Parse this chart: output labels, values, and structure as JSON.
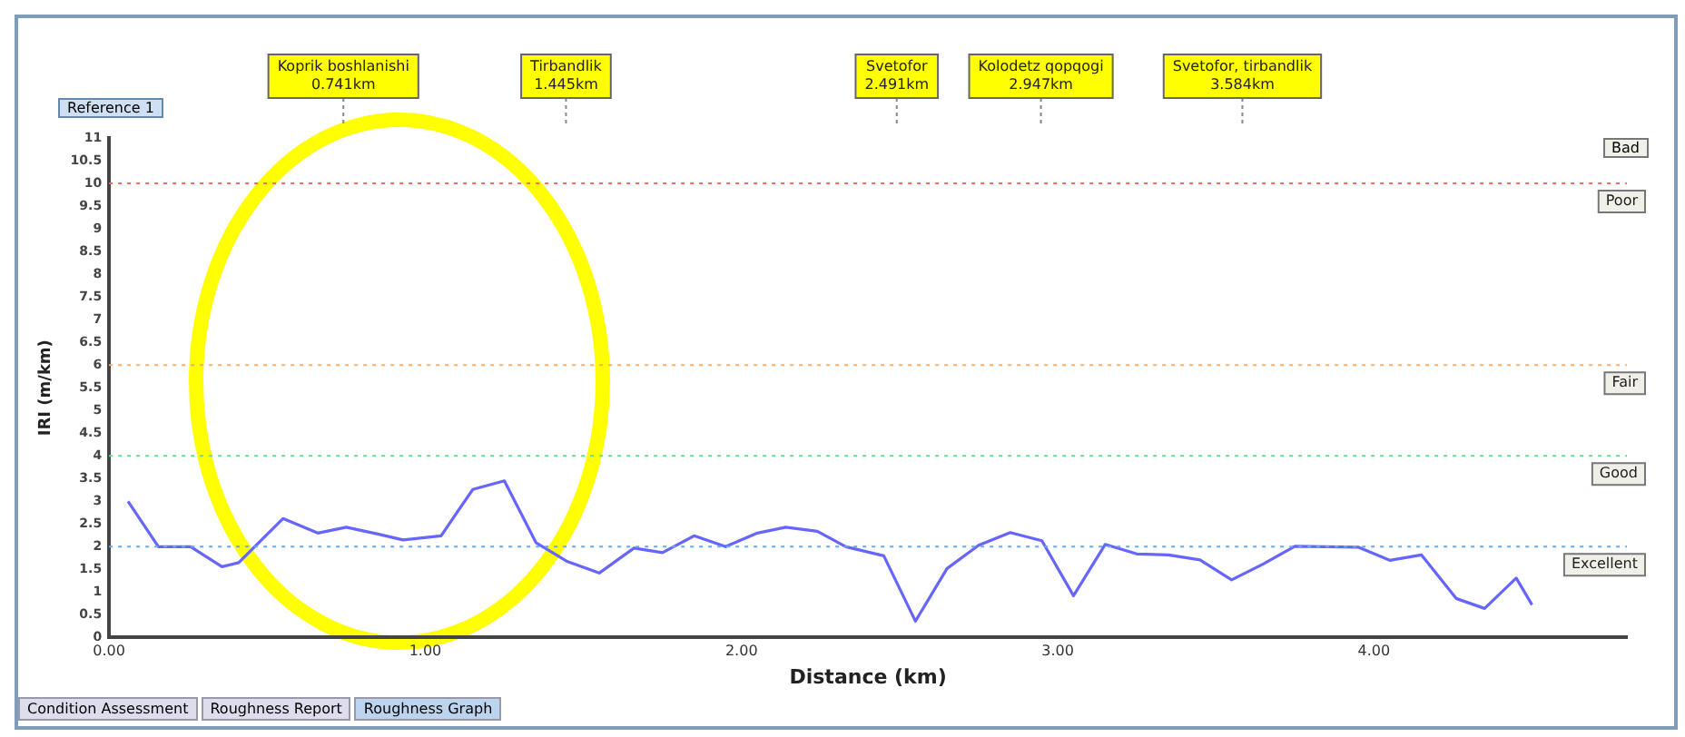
{
  "chart_data": {
    "type": "line",
    "xlabel": "Distance (km)",
    "ylabel": "IRI (m/km)",
    "x": [
      0.06,
      0.156,
      0.258,
      0.357,
      0.41,
      0.55,
      0.66,
      0.75,
      0.85,
      0.93,
      1.05,
      1.15,
      1.25,
      1.35,
      1.45,
      1.55,
      1.66,
      1.75,
      1.85,
      1.95,
      2.05,
      2.14,
      2.24,
      2.33,
      2.45,
      2.55,
      2.65,
      2.75,
      2.85,
      2.95,
      3.05,
      3.15,
      3.25,
      3.35,
      3.45,
      3.55,
      3.65,
      3.75,
      3.85,
      3.95,
      4.05,
      4.15,
      4.26,
      4.35,
      4.45,
      4.5
    ],
    "series": [
      {
        "color": "#6666ff",
        "values": [
          3.0,
          2.0,
          2.0,
          1.56,
          1.65,
          2.62,
          2.3,
          2.43,
          2.28,
          2.15,
          2.24,
          3.26,
          3.45,
          2.09,
          1.67,
          1.42,
          1.97,
          1.87,
          2.24,
          2.0,
          2.3,
          2.43,
          2.34,
          2.0,
          1.8,
          0.36,
          1.52,
          2.03,
          2.31,
          2.13,
          0.92,
          2.05,
          1.84,
          1.82,
          1.71,
          1.27,
          1.62,
          2.01,
          2.0,
          1.99,
          1.7,
          1.82,
          0.86,
          0.64,
          1.31,
          0.72
        ]
      }
    ],
    "xlim": [
      0,
      4.8
    ],
    "ylim": [
      0,
      11
    ],
    "xticks": [
      {
        "value": 0,
        "label": "0.00"
      },
      {
        "value": 1,
        "label": "1.00"
      },
      {
        "value": 2,
        "label": "2.00"
      },
      {
        "value": 3,
        "label": "3.00"
      },
      {
        "value": 4,
        "label": "4.00"
      }
    ],
    "yticks": [
      0,
      0.5,
      1,
      1.5,
      2,
      2.5,
      3,
      3.5,
      4,
      4.5,
      5,
      5.5,
      6,
      6.5,
      7,
      7.5,
      8,
      8.5,
      9,
      9.5,
      10,
      10.5,
      11
    ],
    "grid": false,
    "legend": false,
    "marker": "none",
    "line_style": "solid",
    "ref_lines": [
      {
        "axis": "y",
        "value": 10,
        "label": "Poor",
        "color": "#ff6666",
        "line_style": "dotted"
      },
      {
        "axis": "y",
        "value": 6,
        "label": "Fair",
        "color": "#ffaa66",
        "line_style": "dotted"
      },
      {
        "axis": "y",
        "value": 4,
        "label": "Good",
        "color": "#66dd88",
        "line_style": "dotted"
      },
      {
        "axis": "y",
        "value": 2,
        "label": "Excellent",
        "color": "#66aaee",
        "line_style": "dotted"
      },
      {
        "axis": "x",
        "value": 0.741,
        "label": "Koprik boshlanishi\n0.741km"
      },
      {
        "axis": "x",
        "value": 1.445,
        "label": "Tirbandlik\n1.445km"
      },
      {
        "axis": "x",
        "value": 2.491,
        "label": "Svetofor\n2.491km"
      },
      {
        "axis": "x",
        "value": 2.947,
        "label": "Kolodetz qopqogi\n2.947km"
      },
      {
        "axis": "x",
        "value": 3.584,
        "label": "Svetofor, tirbandlik\n3.584km"
      }
    ],
    "annotations": [
      "Reference 1",
      "Bad",
      "Condition Assessment",
      "Roughness Report",
      "Roughness Graph"
    ]
  }
}
